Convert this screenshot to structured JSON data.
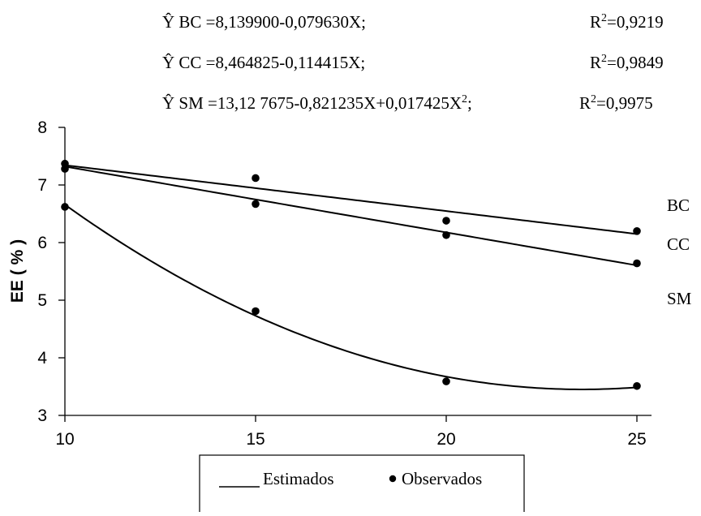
{
  "chart_data": {
    "type": "scatter",
    "title": "",
    "xlabel": "",
    "ylabel": "EE ( % )",
    "xlim": [
      10,
      25
    ],
    "ylim": [
      3,
      8
    ],
    "x_ticks": [
      "10",
      "15",
      "20",
      "25"
    ],
    "y_ticks": [
      "3",
      "4",
      "5",
      "6",
      "7",
      "8"
    ],
    "grid": false,
    "series": [
      {
        "name": "BC",
        "observed": [
          [
            10,
            7.37
          ],
          [
            15,
            7.12
          ],
          [
            20,
            6.38
          ],
          [
            25,
            6.2
          ]
        ],
        "fit": {
          "model": "linear",
          "coefficients": [
            8.1399,
            -0.07963
          ]
        }
      },
      {
        "name": "CC",
        "observed": [
          [
            10,
            7.28
          ],
          [
            15,
            6.67
          ],
          [
            20,
            6.13
          ],
          [
            25,
            5.64
          ]
        ],
        "fit": {
          "model": "linear",
          "coefficients": [
            8.464825,
            -0.114415
          ]
        }
      },
      {
        "name": "SM",
        "observed": [
          [
            10,
            6.62
          ],
          [
            15,
            4.81
          ],
          [
            20,
            3.59
          ],
          [
            25,
            3.51
          ]
        ],
        "fit": {
          "model": "quadratic",
          "coefficients": [
            13.127675,
            -0.821235,
            0.017425
          ]
        }
      }
    ],
    "equations": [
      {
        "text": "Ŷ BC =8,139900-0,079630X;",
        "r2": "R2=0,9219"
      },
      {
        "text": "Ŷ CC =8,464825-0,114415X;",
        "r2": "R2=0,9849"
      },
      {
        "text": "Ŷ SM =13,12 7675-0,821235X+0,017425X2;",
        "r2": "R2=0,9975"
      }
    ],
    "legend": {
      "position": "bottom",
      "entries": [
        "Estimados",
        "Observados"
      ]
    }
  }
}
